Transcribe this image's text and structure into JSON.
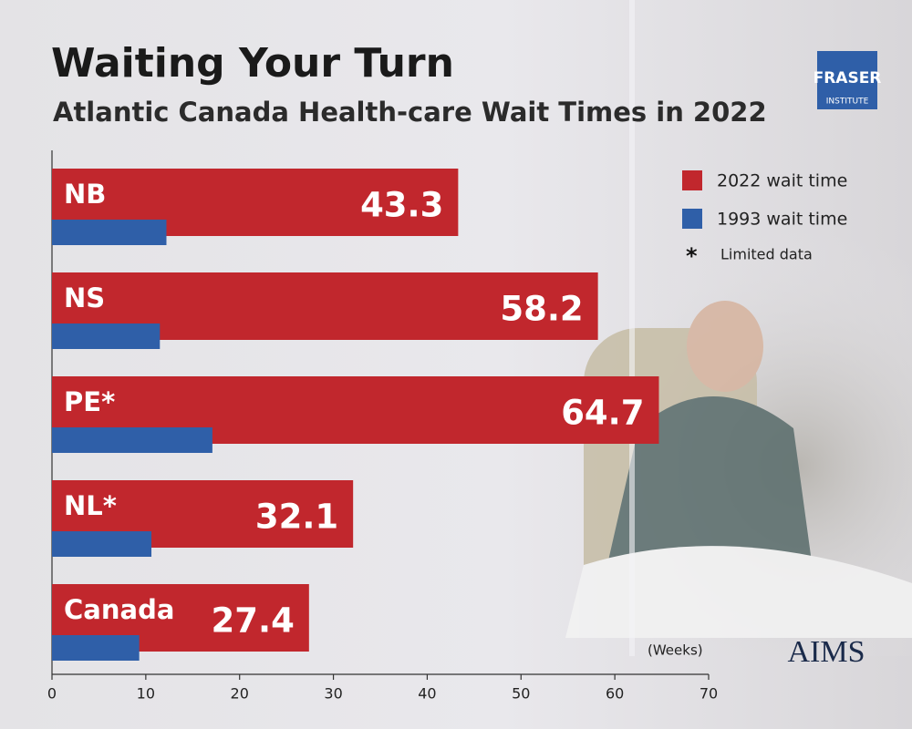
{
  "chart_data": {
    "type": "bar",
    "orientation": "horizontal",
    "title": "Waiting Your Turn",
    "subtitle": "Atlantic Canada Health-care Wait Times in 2022",
    "categories": [
      "NB",
      "NS",
      "PE*",
      "NL*",
      "Canada"
    ],
    "series": [
      {
        "name": "2022 wait time",
        "color": "#c1272d",
        "values": [
          43.3,
          58.2,
          64.7,
          32.1,
          27.4
        ]
      },
      {
        "name": "1993 wait time",
        "color": "#2f5fa8",
        "values": [
          12.2,
          11.5,
          17.1,
          10.6,
          9.3
        ]
      }
    ],
    "note": {
      "symbol": "*",
      "text": "Limited data"
    },
    "x_axis_label": "(Weeks)",
    "xlim": [
      0,
      70
    ],
    "xticks": [
      0,
      10,
      20,
      30,
      40,
      50,
      60,
      70
    ],
    "logos": {
      "fraser": "FRASER",
      "fraser_sub": "INSTITUTE",
      "aims": "AIMS"
    }
  }
}
